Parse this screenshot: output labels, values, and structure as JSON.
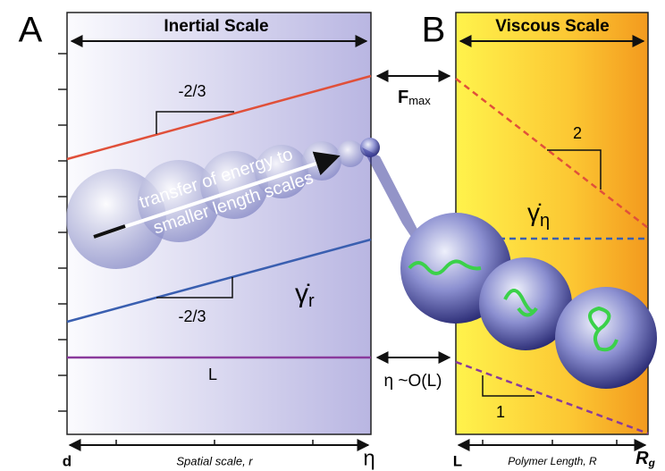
{
  "panel_a": {
    "letter": "A",
    "header": "Inertial Scale",
    "slope_top": "-2/3",
    "slope_bottom": "-2/3",
    "arrow_text_1": "transfer of energy to",
    "arrow_text_2": "smaller length scales",
    "shear_symbol": "γ̇",
    "shear_sub": "r",
    "line_label": "L",
    "axis_left": "d",
    "axis_title": "Spatial scale, r",
    "axis_right": "η"
  },
  "middle": {
    "force_symbol": "F",
    "force_sub": "max",
    "eta_label": "η ~O(L)"
  },
  "panel_b": {
    "letter": "B",
    "header": "Viscous Scale",
    "slope_top": "2",
    "shear_symbol": "γ̇",
    "shear_sub": "η",
    "slope_bottom": "1",
    "axis_left": "L",
    "axis_title": "Polymer Length, R",
    "axis_right_symbol": "R",
    "axis_right_sub": "g"
  }
}
